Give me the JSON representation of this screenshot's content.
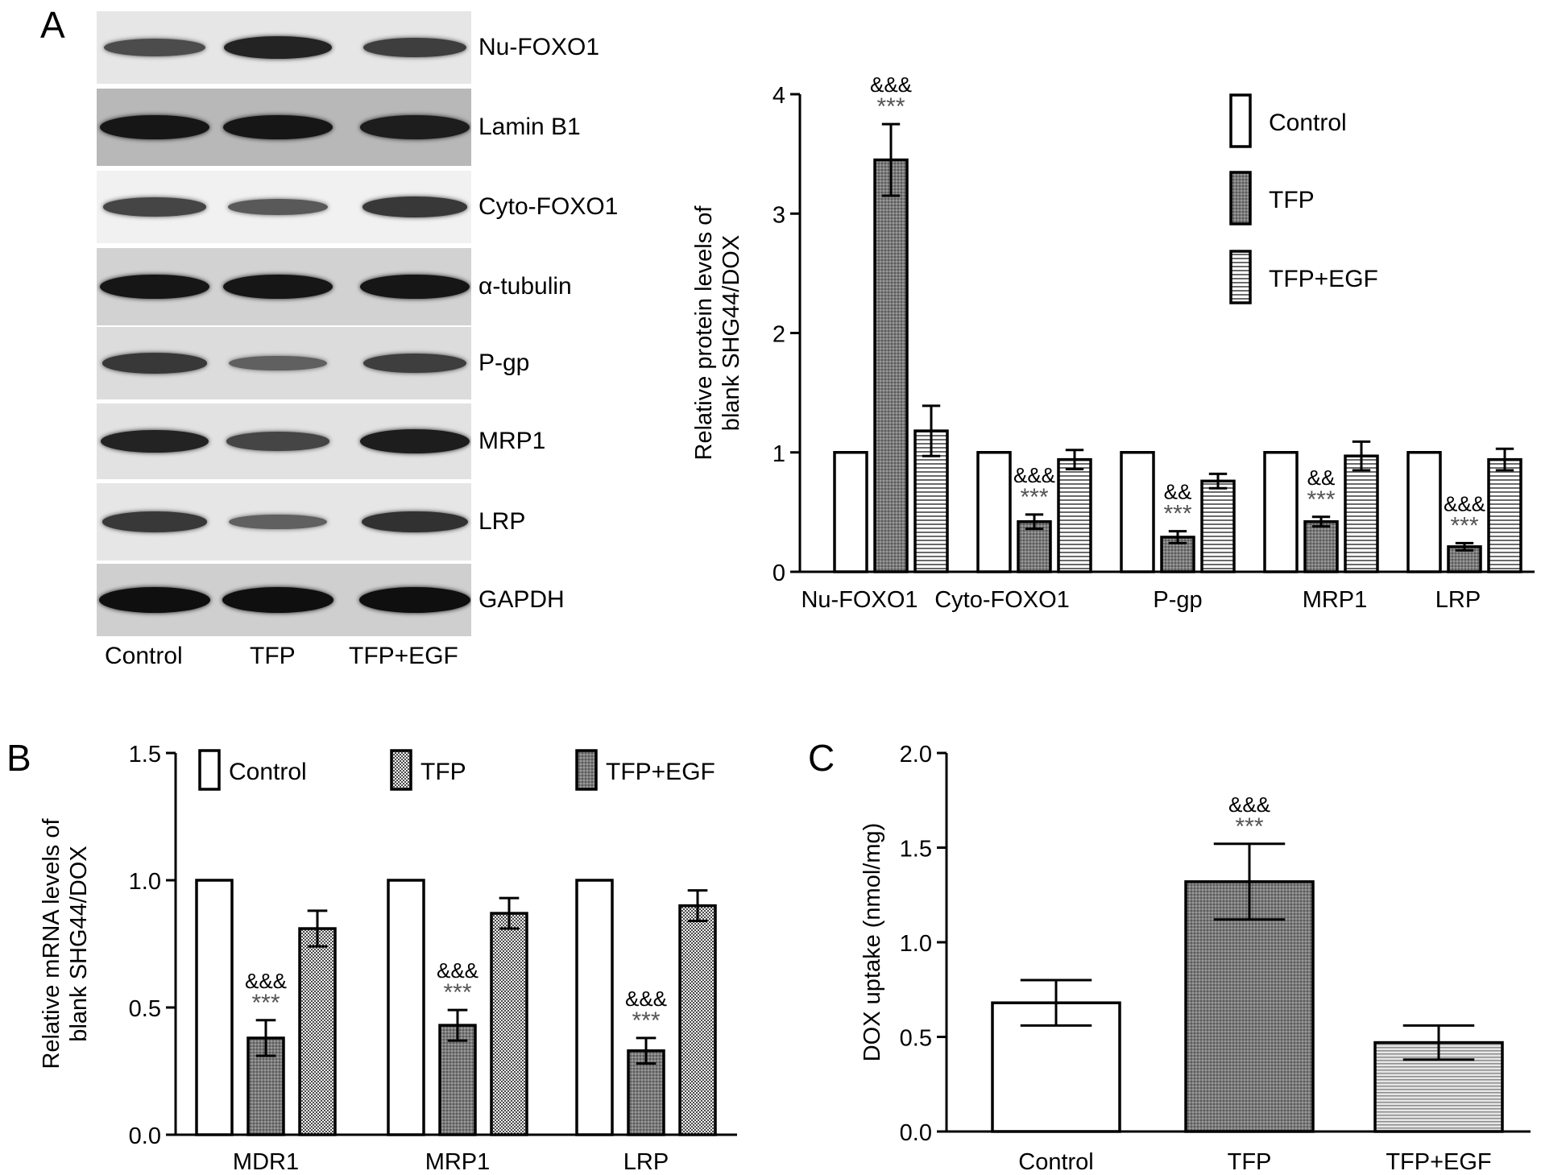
{
  "panel_labels": {
    "a": "A",
    "b": "B",
    "c": "C"
  },
  "western_blot": {
    "rows": [
      {
        "label": "Nu-FOXO1",
        "bg": "#e6e6e6",
        "intensity": [
          0.55,
          0.85,
          0.65
        ]
      },
      {
        "label": "Lamin B1",
        "bg": "#b8b8b8",
        "intensity": [
          0.95,
          0.95,
          0.9
        ]
      },
      {
        "label": "Cyto-FOXO1",
        "bg": "#f1f1f1",
        "intensity": [
          0.6,
          0.45,
          0.7
        ]
      },
      {
        "label": "α-tubulin",
        "bg": "#d2d2d2",
        "intensity": [
          0.95,
          0.95,
          0.95
        ]
      },
      {
        "label": "P-gp",
        "bg": "#dcdcdc",
        "intensity": [
          0.7,
          0.4,
          0.65
        ]
      },
      {
        "label": "MRP1",
        "bg": "#e2e2e2",
        "intensity": [
          0.85,
          0.6,
          0.9
        ]
      },
      {
        "label": "LRP",
        "bg": "#e6e6e6",
        "intensity": [
          0.7,
          0.4,
          0.75
        ]
      },
      {
        "label": "GAPDH",
        "bg": "#cfcfcf",
        "intensity": [
          1.0,
          1.0,
          1.0
        ]
      }
    ],
    "lanes": [
      "Control",
      "TFP",
      "TFP+EGF"
    ]
  },
  "chart_data": [
    {
      "id": "A",
      "type": "bar",
      "title": "",
      "xlabel": "",
      "ylabel": "Relative protein levels of\nblank SHG44/DOX",
      "ylim": [
        0,
        4
      ],
      "yticks": [
        "0",
        "1",
        "2",
        "3",
        "4"
      ],
      "categories": [
        "Nu-FOXO1",
        "Cyto-FOXO1",
        "P-gp",
        "MRP1",
        "LRP"
      ],
      "series": [
        {
          "name": "Control",
          "fill": "white",
          "values": [
            1.0,
            1.0,
            1.0,
            1.0,
            1.0
          ],
          "errors": [
            0,
            0,
            0,
            0,
            0
          ]
        },
        {
          "name": "TFP",
          "fill": "dark-stipple",
          "values": [
            3.45,
            0.42,
            0.29,
            0.42,
            0.21
          ],
          "errors": [
            0.3,
            0.06,
            0.05,
            0.04,
            0.03
          ]
        },
        {
          "name": "TFP+EGF",
          "fill": "horizontal-lines",
          "values": [
            1.18,
            0.94,
            0.76,
            0.97,
            0.94
          ],
          "errors": [
            0.21,
            0.08,
            0.06,
            0.12,
            0.09
          ]
        }
      ],
      "annotations": [
        {
          "category": "Nu-FOXO1",
          "series": "TFP",
          "lines": [
            "&&&",
            "***"
          ]
        },
        {
          "category": "Cyto-FOXO1",
          "series": "TFP",
          "lines": [
            "&&&",
            "***"
          ]
        },
        {
          "category": "P-gp",
          "series": "TFP",
          "lines": [
            "&&",
            "***"
          ]
        },
        {
          "category": "MRP1",
          "series": "TFP",
          "lines": [
            "&&",
            "***"
          ]
        },
        {
          "category": "LRP",
          "series": "TFP",
          "lines": [
            "&&&",
            "***"
          ]
        }
      ],
      "legend": "top-right"
    },
    {
      "id": "B",
      "type": "bar",
      "title": "",
      "xlabel": "",
      "ylabel": "Relative mRNA levels of\nblank SHG44/DOX",
      "ylim": [
        0,
        1.5
      ],
      "yticks": [
        "0.0",
        "0.5",
        "1.0",
        "1.5"
      ],
      "categories": [
        "MDR1",
        "MRP1",
        "LRP"
      ],
      "series": [
        {
          "name": "Control",
          "fill": "white",
          "values": [
            1.0,
            1.0,
            1.0
          ],
          "errors": [
            0,
            0,
            0
          ]
        },
        {
          "name": "TFP",
          "fill": "dark-stipple",
          "values": [
            0.38,
            0.43,
            0.33
          ],
          "errors": [
            0.07,
            0.06,
            0.05
          ]
        },
        {
          "name": "TFP+EGF",
          "fill": "checker",
          "values": [
            0.81,
            0.87,
            0.9
          ],
          "errors": [
            0.07,
            0.06,
            0.06
          ]
        }
      ],
      "legend_fills": [
        "white",
        "checker",
        "dark-stipple"
      ],
      "annotations": [
        {
          "category": "MDR1",
          "series": "TFP",
          "lines": [
            "&&&",
            "***"
          ]
        },
        {
          "category": "MRP1",
          "series": "TFP",
          "lines": [
            "&&&",
            "***"
          ]
        },
        {
          "category": "LRP",
          "series": "TFP",
          "lines": [
            "&&&",
            "***"
          ]
        }
      ],
      "legend": "top"
    },
    {
      "id": "C",
      "type": "bar",
      "title": "",
      "xlabel": "",
      "ylabel": "DOX uptake (nmol/mg)",
      "ylim": [
        0,
        2.0
      ],
      "yticks": [
        "0.0",
        "0.5",
        "1.0",
        "1.5",
        "2.0"
      ],
      "categories": [
        "Control",
        "TFP",
        "TFP+EGF"
      ],
      "values": [
        0.68,
        1.32,
        0.47
      ],
      "errors": [
        0.12,
        0.2,
        0.09
      ],
      "fills": [
        "white",
        "dark-stipple",
        "light-lines"
      ],
      "annotations": [
        {
          "category": "TFP",
          "lines": [
            "&&&",
            "***"
          ]
        }
      ]
    }
  ]
}
